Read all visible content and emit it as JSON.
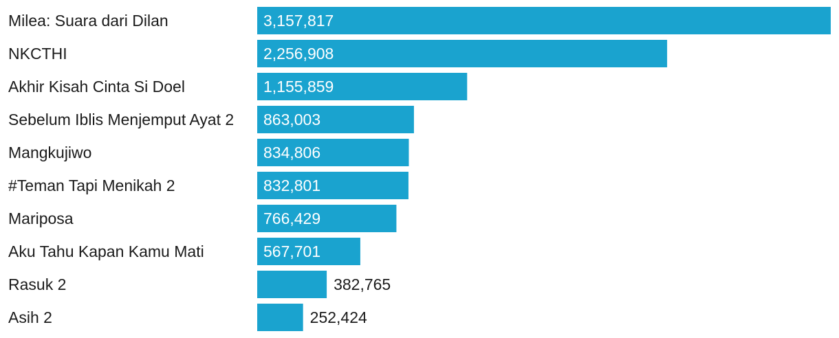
{
  "colors": {
    "bar": "#1aa3cf",
    "label_inside": "#ffffff",
    "label_outside": "#1a1a1a",
    "category_text": "#1a1a1a"
  },
  "chart_data": {
    "type": "bar",
    "orientation": "horizontal",
    "title": "",
    "xlabel": "",
    "ylabel": "",
    "grid": false,
    "legend": "none",
    "categories": [
      "Milea: Suara dari Dilan",
      "NKCTHI",
      "Akhir Kisah Cinta Si Doel",
      "Sebelum Iblis Menjemput Ayat 2",
      "Mangkujiwo",
      "#Teman Tapi Menikah 2",
      "Mariposa",
      "Aku Tahu Kapan Kamu Mati",
      "Rasuk 2",
      "Asih 2"
    ],
    "values": [
      3157817,
      2256908,
      1155859,
      863003,
      834806,
      832801,
      766429,
      567701,
      382765,
      252424
    ],
    "value_labels": [
      "3,157,817",
      "2,256,908",
      "1,155,859",
      "863,003",
      "834,806",
      "832,801",
      "766,429",
      "567,701",
      "382,765",
      "252,424"
    ],
    "xlim": [
      0,
      3157817
    ]
  }
}
